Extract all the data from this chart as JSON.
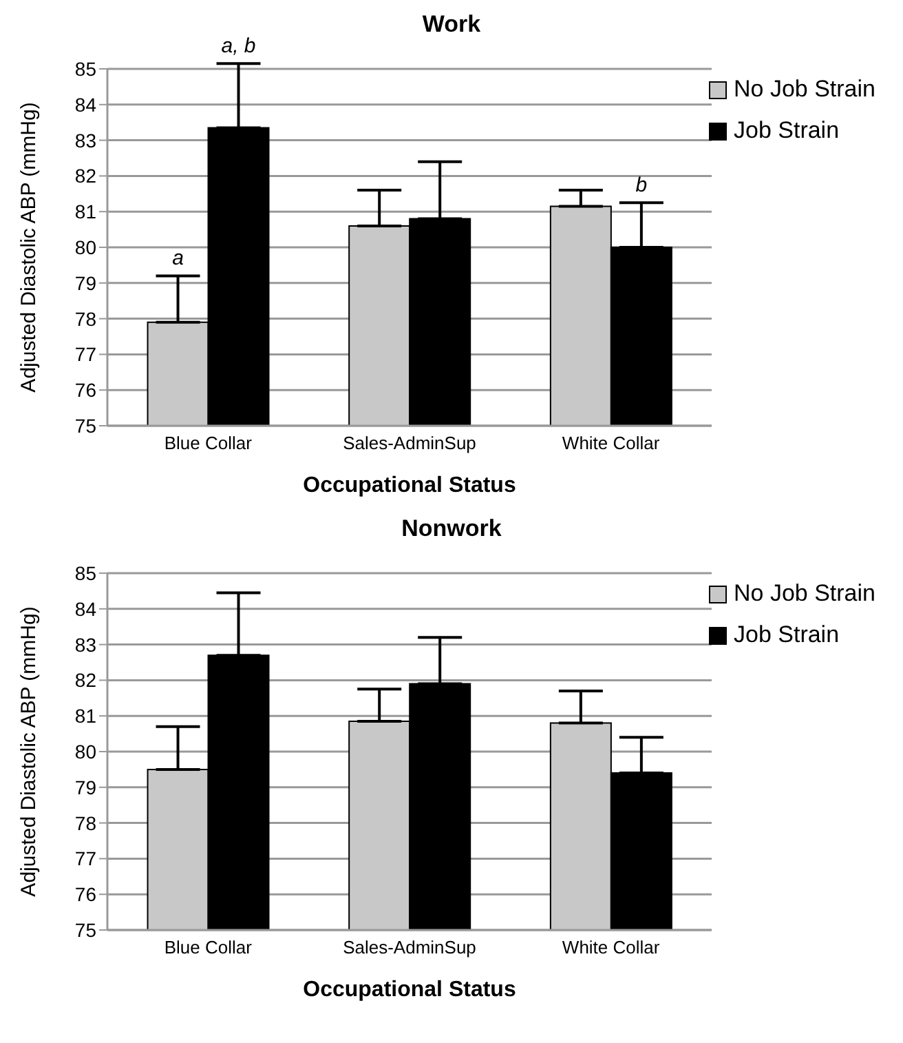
{
  "chart_data": [
    {
      "type": "bar",
      "title": "Work",
      "xlabel": "Occupational Status",
      "ylabel": "Adjusted Diastolic ABP (mmHg)",
      "categories": [
        "Blue Collar",
        "Sales-AdminSup",
        "White Collar"
      ],
      "series": [
        {
          "name": "No Job Strain",
          "color": "#c8c8c8",
          "values": [
            77.9,
            80.6,
            81.15
          ],
          "errors": [
            [
              77.9,
              79.2
            ],
            [
              80.6,
              81.6
            ],
            [
              81.15,
              81.6
            ]
          ]
        },
        {
          "name": "Job Strain",
          "color": "#000000",
          "values": [
            83.35,
            80.8,
            80.0
          ],
          "errors": [
            [
              83.35,
              85.15
            ],
            [
              80.8,
              82.4
            ],
            [
              80.0,
              81.25
            ]
          ]
        }
      ],
      "ylim": [
        75,
        85
      ],
      "yticks": [
        75,
        76,
        77,
        78,
        79,
        80,
        81,
        82,
        83,
        84,
        85
      ],
      "grid": "y",
      "legend": "top right",
      "annotations": [
        {
          "text": "a",
          "x": "Blue Collar",
          "y": 79.2
        },
        "a, b",
        {
          "text": "b",
          "x": "White Collar",
          "y": 81.25
        }
      ]
    },
    {
      "type": "bar",
      "title": "Nonwork",
      "xlabel": "Occupational Status",
      "ylabel": "Adjusted Diastolic ABP (mmHg)",
      "categories": [
        "Blue Collar",
        "Sales-AdminSup",
        "White Collar"
      ],
      "series": [
        {
          "name": "No Job Strain",
          "color": "#c8c8c8",
          "values": [
            79.5,
            80.85,
            80.8
          ],
          "errors": [
            [
              79.5,
              80.7
            ],
            [
              80.85,
              81.75
            ],
            [
              80.8,
              81.7
            ]
          ]
        },
        {
          "name": "Job Strain",
          "color": "#000000",
          "values": [
            82.7,
            81.9,
            79.4
          ],
          "errors": [
            [
              82.7,
              84.45
            ],
            [
              81.9,
              83.2
            ],
            [
              79.4,
              80.4
            ]
          ]
        }
      ],
      "ylim": [
        75,
        85
      ],
      "yticks": [
        75,
        76,
        77,
        78,
        79,
        80,
        81,
        82,
        83,
        84,
        85
      ],
      "grid": "y",
      "legend": "top right"
    }
  ]
}
